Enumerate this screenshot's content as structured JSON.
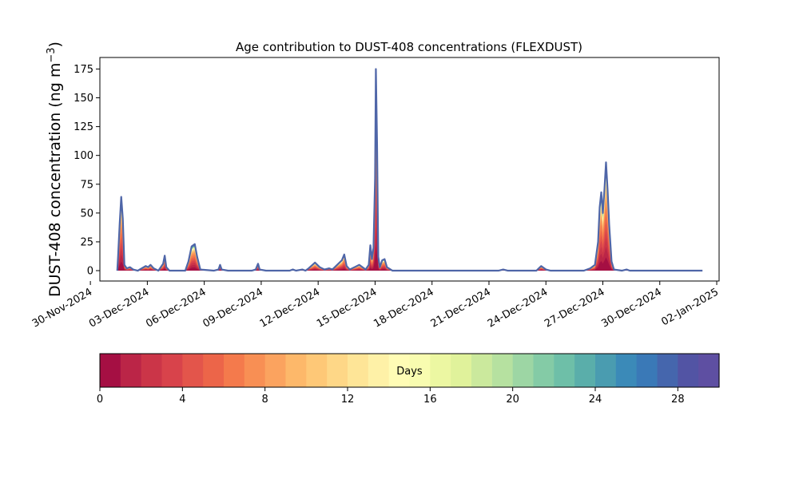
{
  "chart_data": {
    "type": "area",
    "title": "Age contribution to DUST-408 concentrations (FLEXDUST)",
    "ylabel_main": "DUST-408 concentration (ng m",
    "ylabel_sup": "−3",
    "ylabel_close": ")",
    "xlabel": "",
    "xlim": [
      "2024-11-30T12:00",
      "2025-01-02T03:00"
    ],
    "ylim": [
      -9,
      185
    ],
    "yticks": [
      0,
      25,
      50,
      75,
      100,
      125,
      150,
      175
    ],
    "xticks": [
      {
        "date": "2024-11-30",
        "label": "30-Nov-2024"
      },
      {
        "date": "2024-12-03",
        "label": "03-Dec-2024"
      },
      {
        "date": "2024-12-06",
        "label": "06-Dec-2024"
      },
      {
        "date": "2024-12-09",
        "label": "09-Dec-2024"
      },
      {
        "date": "2024-12-12",
        "label": "12-Dec-2024"
      },
      {
        "date": "2024-12-15",
        "label": "15-Dec-2024"
      },
      {
        "date": "2024-12-18",
        "label": "18-Dec-2024"
      },
      {
        "date": "2024-12-21",
        "label": "21-Dec-2024"
      },
      {
        "date": "2024-12-24",
        "label": "24-Dec-2024"
      },
      {
        "date": "2024-12-27",
        "label": "27-Dec-2024"
      },
      {
        "date": "2024-12-30",
        "label": "30-Dec-2024"
      },
      {
        "date": "2025-01-02",
        "label": "02-Jan-2025"
      }
    ],
    "total_series": {
      "name": "",
      "points": [
        [
          "2024-12-01T10:00",
          0
        ],
        [
          "2024-12-01T11:00",
          12
        ],
        [
          "2024-12-01T13:00",
          40
        ],
        [
          "2024-12-01T15:00",
          64
        ],
        [
          "2024-12-01T17:00",
          45
        ],
        [
          "2024-12-01T19:00",
          5
        ],
        [
          "2024-12-01T22:00",
          2
        ],
        [
          "2024-12-02T02:00",
          3
        ],
        [
          "2024-12-02T06:00",
          1
        ],
        [
          "2024-12-02T12:00",
          0
        ],
        [
          "2024-12-02T22:00",
          4
        ],
        [
          "2024-12-03T01:00",
          3
        ],
        [
          "2024-12-03T04:00",
          5
        ],
        [
          "2024-12-03T08:00",
          2
        ],
        [
          "2024-12-03T14:00",
          0
        ],
        [
          "2024-12-03T20:00",
          6
        ],
        [
          "2024-12-03T22:00",
          13
        ],
        [
          "2024-12-04T00:00",
          3
        ],
        [
          "2024-12-04T04:00",
          0
        ],
        [
          "2024-12-05T00:00",
          0
        ],
        [
          "2024-12-05T04:00",
          8
        ],
        [
          "2024-12-05T08:00",
          21
        ],
        [
          "2024-12-05T12:00",
          23
        ],
        [
          "2024-12-05T15:00",
          12
        ],
        [
          "2024-12-05T19:00",
          1
        ],
        [
          "2024-12-06T12:00",
          0
        ],
        [
          "2024-12-06T18:00",
          1
        ],
        [
          "2024-12-06T20:00",
          5
        ],
        [
          "2024-12-06T22:00",
          1
        ],
        [
          "2024-12-07T06:00",
          0
        ],
        [
          "2024-12-08T12:00",
          0
        ],
        [
          "2024-12-08T17:00",
          1
        ],
        [
          "2024-12-08T20:00",
          6
        ],
        [
          "2024-12-08T22:00",
          1
        ],
        [
          "2024-12-09T06:00",
          0
        ],
        [
          "2024-12-10T12:00",
          0
        ],
        [
          "2024-12-10T16:00",
          1
        ],
        [
          "2024-12-10T20:00",
          0
        ],
        [
          "2024-12-11T04:00",
          1
        ],
        [
          "2024-12-11T08:00",
          0
        ],
        [
          "2024-12-11T12:00",
          2
        ],
        [
          "2024-12-11T20:00",
          7
        ],
        [
          "2024-12-12T02:00",
          3
        ],
        [
          "2024-12-12T08:00",
          1
        ],
        [
          "2024-12-12T14:00",
          2
        ],
        [
          "2024-12-12T18:00",
          1
        ],
        [
          "2024-12-13T00:00",
          5
        ],
        [
          "2024-12-13T06:00",
          9
        ],
        [
          "2024-12-13T09:00",
          14
        ],
        [
          "2024-12-13T12:00",
          4
        ],
        [
          "2024-12-13T16:00",
          1
        ],
        [
          "2024-12-13T22:00",
          3
        ],
        [
          "2024-12-14T04:00",
          5
        ],
        [
          "2024-12-14T08:00",
          3
        ],
        [
          "2024-12-14T12:00",
          1
        ],
        [
          "2024-12-14T16:00",
          5
        ],
        [
          "2024-12-14T18:00",
          22
        ],
        [
          "2024-12-14T20:00",
          10
        ],
        [
          "2024-12-14T22:00",
          20
        ],
        [
          "2024-12-15T00:00",
          80
        ],
        [
          "2024-12-15T01:00",
          175
        ],
        [
          "2024-12-15T02:30",
          110
        ],
        [
          "2024-12-15T04:00",
          12
        ],
        [
          "2024-12-15T06:00",
          3
        ],
        [
          "2024-12-15T09:00",
          9
        ],
        [
          "2024-12-15T12:00",
          10
        ],
        [
          "2024-12-15T15:00",
          3
        ],
        [
          "2024-12-15T22:00",
          0
        ],
        [
          "2024-12-21T12:00",
          0
        ],
        [
          "2024-12-21T18:00",
          1
        ],
        [
          "2024-12-22T00:00",
          0
        ],
        [
          "2024-12-23T12:00",
          0
        ],
        [
          "2024-12-23T18:00",
          4
        ],
        [
          "2024-12-24T00:00",
          1
        ],
        [
          "2024-12-24T06:00",
          0
        ],
        [
          "2024-12-26T00:00",
          0
        ],
        [
          "2024-12-26T08:00",
          2
        ],
        [
          "2024-12-26T14:00",
          5
        ],
        [
          "2024-12-26T18:00",
          25
        ],
        [
          "2024-12-26T20:00",
          55
        ],
        [
          "2024-12-26T22:00",
          68
        ],
        [
          "2024-12-27T00:00",
          50
        ],
        [
          "2024-12-27T02:00",
          70
        ],
        [
          "2024-12-27T04:00",
          94
        ],
        [
          "2024-12-27T06:00",
          70
        ],
        [
          "2024-12-27T08:00",
          40
        ],
        [
          "2024-12-27T11:00",
          8
        ],
        [
          "2024-12-27T14:00",
          1
        ],
        [
          "2024-12-28T00:00",
          0
        ],
        [
          "2024-12-28T06:00",
          1
        ],
        [
          "2024-12-28T10:00",
          0
        ],
        [
          "2025-01-01T06:00",
          0
        ]
      ]
    },
    "age_fractions": [
      {
        "day": 0,
        "fraction": 0.13
      },
      {
        "day": 1,
        "fraction": 0.1
      },
      {
        "day": 2,
        "fraction": 0.09
      },
      {
        "day": 3,
        "fraction": 0.08
      },
      {
        "day": 4,
        "fraction": 0.07
      },
      {
        "day": 5,
        "fraction": 0.07
      },
      {
        "day": 6,
        "fraction": 0.08
      },
      {
        "day": 7,
        "fraction": 0.07
      },
      {
        "day": 8,
        "fraction": 0.05
      },
      {
        "day": 9,
        "fraction": 0.04
      },
      {
        "day": 10,
        "fraction": 0.03
      },
      {
        "day": 11,
        "fraction": 0.03
      },
      {
        "day": 12,
        "fraction": 0.02
      },
      {
        "day": 13,
        "fraction": 0.02
      },
      {
        "day": 14,
        "fraction": 0.015
      },
      {
        "day": 15,
        "fraction": 0.015
      },
      {
        "day": 16,
        "fraction": 0.01
      },
      {
        "day": 17,
        "fraction": 0.01
      },
      {
        "day": 18,
        "fraction": 0.01
      },
      {
        "day": 19,
        "fraction": 0.01
      },
      {
        "day": 20,
        "fraction": 0.01
      },
      {
        "day": 21,
        "fraction": 0.01
      },
      {
        "day": 22,
        "fraction": 0.01
      },
      {
        "day": 23,
        "fraction": 0.01
      },
      {
        "day": 24,
        "fraction": 0.01
      },
      {
        "day": 25,
        "fraction": 0.01
      },
      {
        "day": 26,
        "fraction": 0.01
      },
      {
        "day": 27,
        "fraction": 0.01
      },
      {
        "day": 28,
        "fraction": 0.01
      },
      {
        "day": 29,
        "fraction": 0.01
      }
    ],
    "colorbar": {
      "label": "Days",
      "range": [
        0,
        30
      ],
      "ticks": [
        0,
        4,
        8,
        12,
        16,
        20,
        24,
        28
      ],
      "colors": [
        "#a50f43",
        "#bb2547",
        "#cb3548",
        "#d8434b",
        "#e3554b",
        "#ec6549",
        "#f47a4c",
        "#f88f54",
        "#fba35f",
        "#fdb86a",
        "#fec877",
        "#fed787",
        "#fee597",
        "#fef1a7",
        "#fffcb5",
        "#f8fcb0",
        "#ecf7a2",
        "#e0f29b",
        "#cbe99d",
        "#b6e1a0",
        "#9dd6a4",
        "#84cba6",
        "#6ebfa8",
        "#5aaeaa",
        "#4a9cb0",
        "#3b8ab8",
        "#3a79b7",
        "#4566ad",
        "#5254a4",
        "#5e4fa2"
      ]
    }
  }
}
